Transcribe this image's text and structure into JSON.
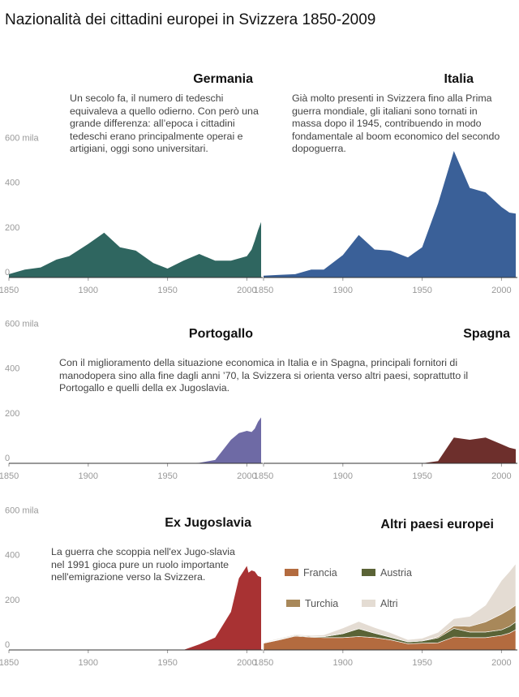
{
  "title": "Nazionalità dei cittadini europei in Svizzera 1850-2009",
  "rows": [
    {
      "y_tick_labels": [
        "600 mila",
        "400",
        "200",
        "0"
      ],
      "x_tick_labels": [
        "1850",
        "1900",
        "1950",
        "2000"
      ]
    },
    {
      "y_tick_labels": [
        "600 mila",
        "400",
        "200",
        "0"
      ],
      "x_tick_labels": [
        "1850",
        "1900",
        "1950",
        "2000"
      ]
    },
    {
      "y_tick_labels": [
        "600 mila",
        "400",
        "200",
        "0"
      ],
      "x_tick_labels": [
        "1850",
        "1900",
        "1950",
        "2000"
      ]
    }
  ],
  "panels": [
    {
      "title": "Germania",
      "description": "Un secolo fa, il numero di tedeschi equivaleva a quello odierno. Con però una grande differenza: all’epoca i cittadini tedeschi erano principalmente operai e artigiani, oggi sono universitari."
    },
    {
      "title": "Italia",
      "description": "Già molto presenti in Svizzera fino alla Prima guerra mondiale, gli italiani sono tornati in massa dopo il 1945, contribuendo in modo fondamentale al boom economico del secondo dopoguerra."
    },
    {
      "title": "Portogallo",
      "description": "Con il miglioramento della situazione economica in Italia e in Spagna, principali fornitori di manodopera sino alla fine dagli anni ’70, la Svizzera si orienta verso altri paesi, soprattutto il Portogallo e quelli della ex Jugoslavia."
    },
    {
      "title": "Spagna",
      "description": ""
    },
    {
      "title": "Ex Jugoslavia",
      "description": "La guerra che scoppia nell'ex Jugo-slavia nel 1991 gioca pure un ruolo importante nell'emigrazione verso la Svizzera."
    },
    {
      "title": "Altri paesi europei",
      "description": ""
    }
  ],
  "legend": [
    {
      "label": "Francia",
      "color": "#b36b3f"
    },
    {
      "label": "Austria",
      "color": "#5a6336"
    },
    {
      "label": "Turchia",
      "color": "#a8885a"
    },
    {
      "label": "Altri",
      "color": "#e4dcd3"
    }
  ],
  "chart_data": [
    {
      "type": "area",
      "name": "Germania",
      "color": "#2f6660",
      "xlim": [
        1850,
        2009
      ],
      "ylim": [
        0,
        600
      ],
      "x": [
        1850,
        1860,
        1870,
        1880,
        1888,
        1900,
        1910,
        1920,
        1930,
        1941,
        1950,
        1960,
        1970,
        1980,
        1990,
        2000,
        2003,
        2005,
        2007,
        2009
      ],
      "y": [
        15,
        35,
        45,
        80,
        95,
        150,
        200,
        135,
        120,
        65,
        40,
        75,
        105,
        75,
        75,
        95,
        125,
        165,
        210,
        248
      ]
    },
    {
      "type": "area",
      "name": "Italia",
      "color": "#3a6098",
      "xlim": [
        1850,
        2009
      ],
      "ylim": [
        0,
        600
      ],
      "x": [
        1850,
        1860,
        1870,
        1880,
        1888,
        1900,
        1910,
        1920,
        1930,
        1941,
        1950,
        1960,
        1970,
        1980,
        1990,
        2000,
        2005,
        2009
      ],
      "y": [
        8,
        12,
        15,
        35,
        35,
        100,
        190,
        125,
        120,
        90,
        135,
        330,
        565,
        400,
        380,
        315,
        290,
        285
      ]
    },
    {
      "type": "area",
      "name": "Portogallo",
      "color": "#6e6aa5",
      "xlim": [
        1850,
        2009
      ],
      "ylim": [
        0,
        600
      ],
      "x": [
        1850,
        1960,
        1970,
        1980,
        1990,
        1995,
        2000,
        2003,
        2005,
        2007,
        2009
      ],
      "y": [
        0,
        0,
        2,
        15,
        105,
        135,
        145,
        140,
        155,
        185,
        205
      ]
    },
    {
      "type": "area",
      "name": "Spagna",
      "color": "#6d2f2c",
      "xlim": [
        1850,
        2009
      ],
      "ylim": [
        0,
        600
      ],
      "x": [
        1850,
        1950,
        1960,
        1970,
        1980,
        1990,
        2000,
        2005,
        2009
      ],
      "y": [
        0,
        0,
        10,
        115,
        105,
        115,
        85,
        70,
        63
      ]
    },
    {
      "type": "area",
      "name": "Ex Jugoslavia",
      "color": "#a83233",
      "xlim": [
        1850,
        2009
      ],
      "ylim": [
        0,
        600
      ],
      "x": [
        1850,
        1960,
        1970,
        1980,
        1990,
        1995,
        2000,
        2001,
        2003,
        2005,
        2007,
        2009
      ],
      "y": [
        0,
        0,
        25,
        55,
        170,
        320,
        375,
        345,
        355,
        350,
        330,
        325
      ]
    },
    {
      "type": "area",
      "name": "Altri paesi europei",
      "stacked": true,
      "xlim": [
        1850,
        2009
      ],
      "ylim": [
        0,
        600
      ],
      "x": [
        1850,
        1860,
        1870,
        1880,
        1888,
        1900,
        1910,
        1920,
        1930,
        1941,
        1950,
        1960,
        1970,
        1980,
        1990,
        2000,
        2005,
        2009
      ],
      "series": [
        {
          "name": "Francia",
          "color": "#b36b3f",
          "values": [
            30,
            45,
            62,
            57,
            55,
            55,
            60,
            55,
            45,
            28,
            30,
            32,
            58,
            55,
            55,
            65,
            75,
            90
          ]
        },
        {
          "name": "Austria",
          "color": "#5a6336",
          "values": [
            2,
            3,
            3,
            3,
            4,
            18,
            35,
            20,
            12,
            8,
            10,
            22,
            38,
            25,
            25,
            25,
            30,
            35
          ]
        },
        {
          "name": "Turchia",
          "color": "#a8885a",
          "values": [
            0,
            0,
            0,
            0,
            0,
            0,
            0,
            0,
            0,
            0,
            0,
            5,
            12,
            25,
            45,
            70,
            75,
            75
          ]
        },
        {
          "name": "Altri",
          "color": "#e4dcd3",
          "values": [
            3,
            4,
            4,
            5,
            8,
            25,
            32,
            25,
            20,
            10,
            12,
            20,
            32,
            45,
            75,
            150,
            170,
            185
          ]
        }
      ]
    }
  ]
}
